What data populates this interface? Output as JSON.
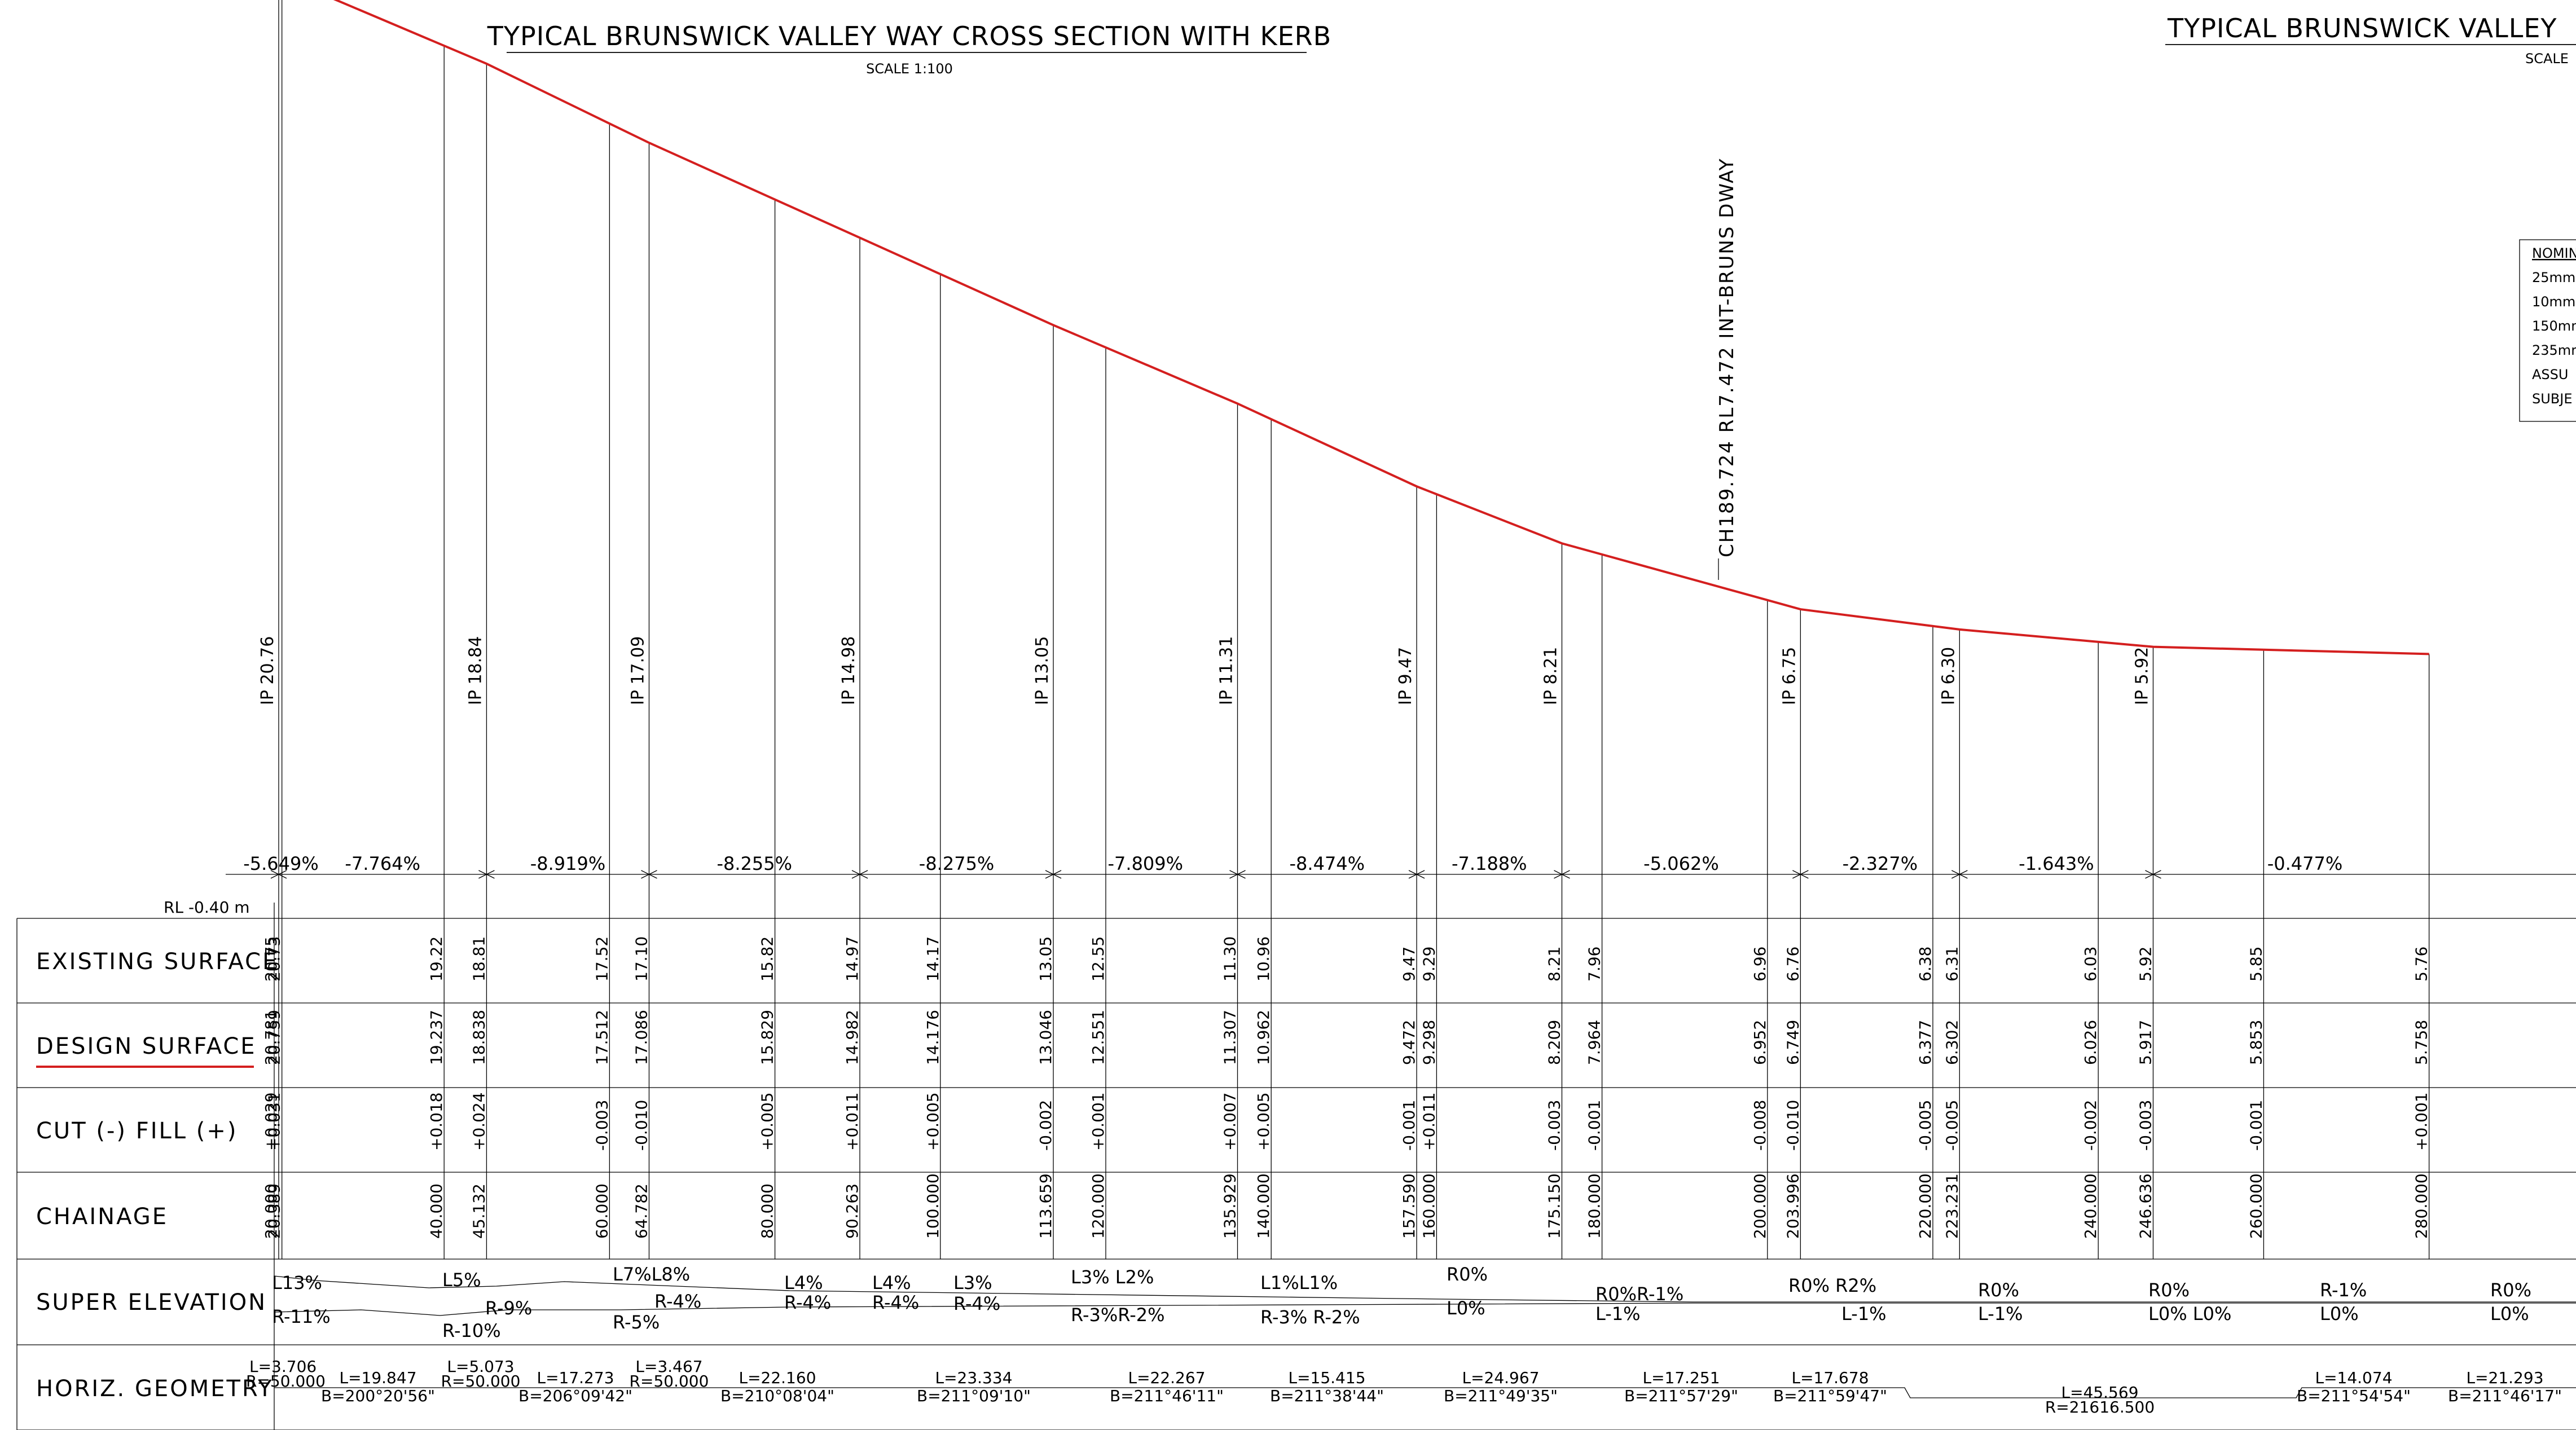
{
  "titles": {
    "main": "TYPICAL BRUNSWICK VALLEY WAY CROSS SECTION WITH KERB",
    "main_scale": "SCALE 1:100",
    "right": "TYPICAL BRUNSWICK VALLEY",
    "right_scale": "SCALE"
  },
  "notes": {
    "title": "NOMIN",
    "lines": [
      "25mm",
      "10mm",
      "150mn",
      "235mr",
      "ASSU",
      "SUBJE"
    ]
  },
  "datum": "RL -0.40  m",
  "chainage_marker": "CH189.724  RL7.472  INT-BRUNS DWAY",
  "row_labels": {
    "existing": "EXISTING SURFACE",
    "design": "DESIGN SURFACE",
    "cutfill": "CUT (-) FILL (+)",
    "chainage": "CHAINAGE",
    "super": "SUPER ELEVATION",
    "horiz": "HORIZ. GEOMETRY"
  },
  "colors": {
    "design_line": "#d41f1f",
    "linework": "#000000"
  },
  "profile": {
    "chainage": [
      20,
      20.389,
      40,
      45.132,
      60,
      64.782,
      80,
      90.263,
      100,
      113.659,
      120,
      135.929,
      140,
      157.59,
      160,
      175.15,
      180,
      200,
      203.996,
      220,
      223.231,
      240,
      246.636,
      260,
      280
    ],
    "existing": [
      "20.75",
      "20.73",
      "19.22",
      "18.81",
      "17.52",
      "17.10",
      "15.82",
      "14.97",
      "14.17",
      "13.05",
      "12.55",
      "11.30",
      "10.96",
      "9.47",
      "9.29",
      "8.21",
      "7.96",
      "6.96",
      "6.76",
      "6.38",
      "6.31",
      "6.03",
      "5.92",
      "5.85",
      "5.76"
    ],
    "design": [
      "20.781",
      "20.759",
      "19.237",
      "18.838",
      "17.512",
      "17.086",
      "15.829",
      "14.982",
      "14.176",
      "13.046",
      "12.551",
      "11.307",
      "10.962",
      "9.472",
      "9.298",
      "8.209",
      "7.964",
      "6.952",
      "6.749",
      "6.377",
      "6.302",
      "6.026",
      "5.917",
      "5.853",
      "5.758"
    ],
    "cutfill": [
      "+0.029",
      "+0.031",
      "+0.018",
      "+0.024",
      "-0.003",
      "-0.010",
      "+0.005",
      "+0.011",
      "+0.005",
      "-0.002",
      "+0.001",
      "+0.007",
      "+0.005",
      "-0.001",
      "+0.011",
      "-0.003",
      "-0.001",
      "-0.008",
      "-0.010",
      "-0.005",
      "-0.005",
      "-0.002",
      "-0.003",
      "-0.001",
      "+0.001"
    ],
    "chainage_text": [
      "20.000",
      "20.389",
      "40.000",
      "45.132",
      "60.000",
      "64.782",
      "80.000",
      "90.263",
      "100.000",
      "113.659",
      "120.000",
      "135.929",
      "140.000",
      "157.590",
      "160.000",
      "175.150",
      "180.000",
      "200.000",
      "203.996",
      "220.000",
      "223.231",
      "240.000",
      "246.636",
      "260.000",
      "280.000"
    ]
  },
  "ips": [
    "IP  20.76",
    "IP  18.84",
    "IP  17.09",
    "IP  14.98",
    "IP  13.05",
    "IP  11.31",
    "IP  9.47",
    "IP  8.21",
    "IP  6.75",
    "IP  6.30",
    "IP  5.92"
  ],
  "grades": [
    "-5.649%",
    "-7.764%",
    "-8.919%",
    "-8.255%",
    "-8.275%",
    "-7.809%",
    "-8.474%",
    "-7.188%",
    "-5.062%",
    "-2.327%",
    "-1.643%",
    "-0.477%"
  ],
  "super_elevation": {
    "top": [
      "L13%",
      "L5%",
      "L7%L8%",
      "L4%",
      "L4%",
      "L3%",
      "L3%  L2%",
      "L1%L1%",
      "R0%",
      "R0%R-1%",
      "R0%  R2%",
      "R0%",
      "R0%",
      "R-1%",
      "R0%"
    ],
    "bottom": [
      "R-11%",
      "R-9%",
      "R-10%",
      "R-4%",
      "R-5%",
      "R-4%",
      "R-4%",
      "R-4%",
      "R-3%R-2%",
      "R-3% R-2%",
      "L0%",
      "L-1%",
      "L-1%",
      "L-1%",
      "L0%  L0%",
      "L0%",
      "L0%"
    ]
  },
  "horiz_geometry": [
    "L=3.706",
    "R=50.000",
    "L=19.847",
    "B=200°20'56\"",
    "L=5.073",
    "R=50.000",
    "L=17.273",
    "B=206°09'42\"",
    "L=3.467",
    "R=50.000",
    "L=22.160",
    "B=210°08'04\"",
    "L=23.334",
    "B=211°09'10\"",
    "L=22.267",
    "B=211°46'11\"",
    "L=15.415",
    "B=211°38'44\"",
    "L=24.967",
    "B=211°49'35\"",
    "L=17.251",
    "B=211°57'29\"",
    "L=17.678",
    "B=211°59'47\"",
    "L=45.569",
    "R=21616.500",
    "L=14.074",
    "B=211°54'54\"",
    "L=21.293",
    "B=211°46'17\""
  ]
}
